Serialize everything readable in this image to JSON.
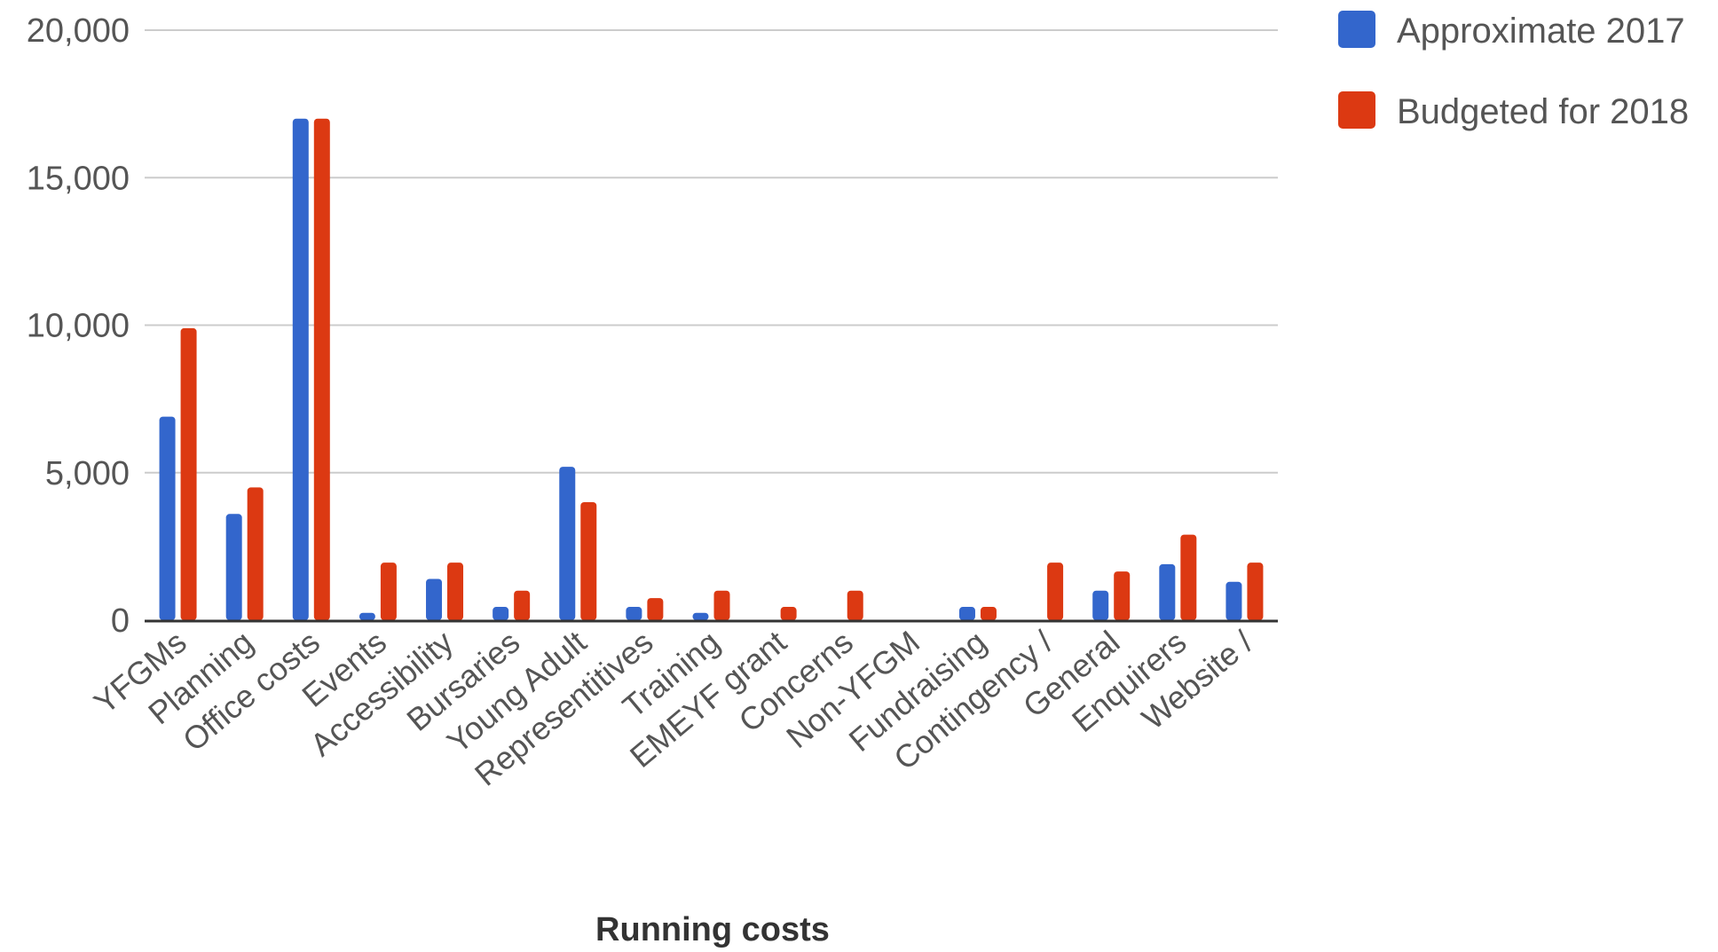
{
  "chart_data": {
    "type": "bar",
    "title": "",
    "xlabel": "Running costs",
    "ylabel": "",
    "ylim": [
      0,
      20000
    ],
    "yticks": [
      0,
      5000,
      10000,
      15000,
      20000
    ],
    "ytick_labels": [
      "0",
      "5,000",
      "10,000",
      "15,000",
      "20,000"
    ],
    "grid": true,
    "legend_position": "top-right",
    "categories": [
      "YFGMs",
      "Planning",
      "Office costs",
      "Events",
      "Accessibility",
      "Bursaries",
      "Young Adult",
      "Representitives",
      "Training",
      "EMEYF grant",
      "Concerns",
      "Non-YFGM",
      "Fundraising",
      "Contingency /",
      "General",
      "Enquirers",
      "Website /"
    ],
    "series": [
      {
        "name": "Approximate 2017",
        "color": "#3366cc",
        "values": [
          6900,
          3600,
          17000,
          250,
          1400,
          450,
          5200,
          450,
          250,
          0,
          0,
          0,
          450,
          0,
          1000,
          1900,
          1300
        ]
      },
      {
        "name": "Budgeted for 2018",
        "color": "#dc3912",
        "values": [
          9900,
          4500,
          17000,
          1950,
          1950,
          1000,
          4000,
          750,
          1000,
          450,
          1000,
          0,
          450,
          1950,
          1650,
          2900,
          1950
        ]
      }
    ]
  }
}
